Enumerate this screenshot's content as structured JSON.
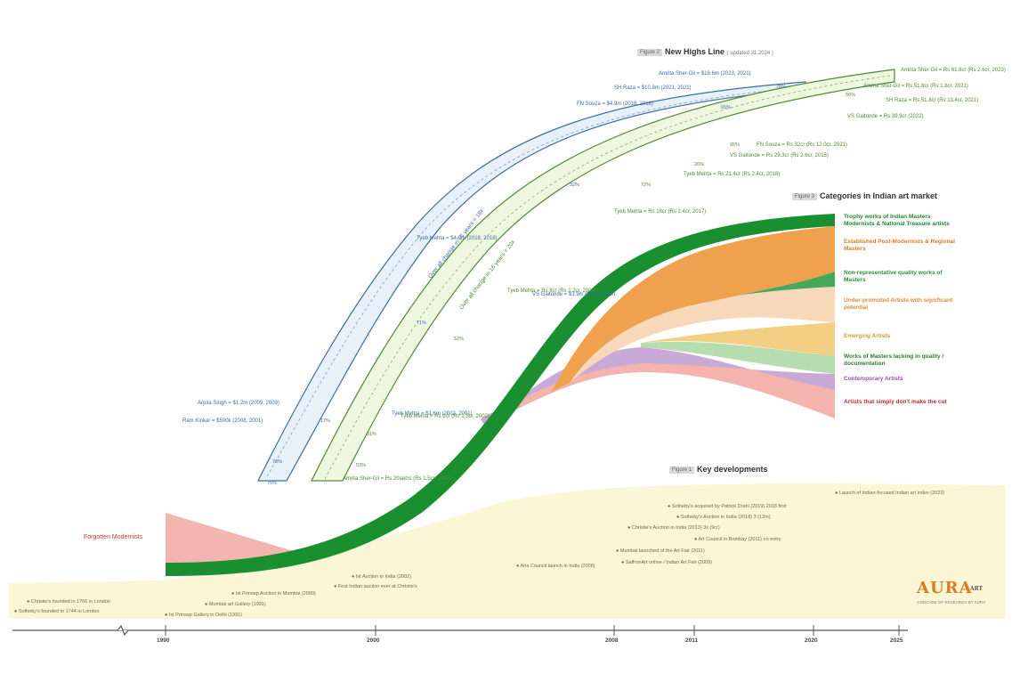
{
  "figure2": {
    "fig": "Figure 2",
    "title": "New Highs Line",
    "sub": "( updated 31.2024 )"
  },
  "figure3": {
    "fig": "Figure 3",
    "title": "Categories in Indian art market"
  },
  "figure1": {
    "fig": "Figure 1",
    "title": "Key developments"
  },
  "left_label": "Forgotten Modernists",
  "overall_blue": "Over all change in 16 years = 18x",
  "overall_green": "Over all change in 16 years = 20x",
  "categories": [
    {
      "label": "Trophy works of Indian Masters Modernists & National Treasure artists",
      "color": "#1e8a2e"
    },
    {
      "label": "Established Post-Modernists & Regional Masters",
      "color": "#e07b1b"
    },
    {
      "label": "Non-representative quality works of Masters",
      "color": "#2f8f3a"
    },
    {
      "label": "Under-promoted Artists with significant potential",
      "color": "#e08a3a"
    },
    {
      "label": "Emerging Artists",
      "color": "#c8a02a"
    },
    {
      "label": "Works of Masters lacking in quality / documentation",
      "color": "#2e7d32"
    },
    {
      "label": "Contemporary Artists",
      "color": "#9c4fa8"
    },
    {
      "label": "Artists that simply don't make the cut",
      "color": "#c62828"
    }
  ],
  "blue_labels": [
    "Amrita Sher-Gil = $18.6m (2023, 2021)",
    "SH Raza = $10.8m (2021, 2021)",
    "FN Souza = $4.9m (2018, 2018)",
    "Tyeb Mehta = $4.0m (2018, 2018)",
    "VS Gaitonde = $3.9m (2013, 2015)",
    "Tyeb Mehta = $1.6m (2002, 2001)",
    "Arpita Singh = $1.2m (2009, 2009)",
    "Ram Kinkar = $500k (2008, 2001)"
  ],
  "green_labels": [
    "Amrita Sher-Gil = Rs 61.8cr (Rs 2.6cr, 2023)",
    "Amrita Sher-Gil = Rs 51.8cr (Rs 1.8cr, 2021)",
    "SH Raza = Rs 51.8cr (Rs 13.4cr, 2021)",
    "VS Gaitonde = Rs 39.9cr (2022)",
    "FN Souza = Rs 32cr (Rs 12.0cr, 2021)",
    "VS Gaitonde = Rs 29.3cr (Rs 2.6cr, 2015)",
    "Tyeb Mehta = Rs 21.4cr (Rs 2.4cr, 2018)",
    "Tyeb Mehta = Rs 18cr (Rs 2.4cr, 2017)",
    "Tyeb Mehta = Rs 8cr (Rs 1.2cr, 2009)",
    "Tyeb Mehta = Rs 1cr (Rs 1.5cr, 2002)",
    "Amrita Sher-Gil = Rs 20lakhs (Rs 1.5cr, 2000)"
  ],
  "pcts_blue": [
    "78%",
    "65%",
    "32%",
    "71%",
    "17%",
    "73%",
    "75%"
  ],
  "pcts_green": [
    "56%",
    "95%",
    "26%",
    "72%",
    "52%",
    "81%",
    "53%"
  ],
  "developments": [
    "Launch of Indian-focused Indian art index (2023)",
    "Sotheby's acquired by Patrick Drahi (2019) 2018 first",
    "Sotheby's Auction in India (2018) 3 (12m)",
    "Christie's Auction in India (2013) 3x (9cr)",
    "Art Council in Bombay (2011) on entry",
    "Mumbai launched of the Art Fair (2011)",
    "SaffronArt online / Indian Art Fair (2009)",
    "Arts Council launch in India (2008)",
    "Ist Auction in India (2002)",
    "First Indian auction ever at Christie's",
    "Ist Prinsep Auction in Mumbai (2000)",
    "Christie's founded in 1766 in London",
    "Sotheby's founded in 1744 in London",
    "Mumbai art Gallery (1991)",
    "Ist Prinsep Gallery in Delhi (1991)"
  ],
  "axis": [
    "1990",
    "2000",
    "2008",
    "2011",
    "2020",
    "2025"
  ],
  "logo": {
    "text": "AURA",
    "sup": "ART",
    "tag": "A DECADE OF RESEARCH BY AURA"
  },
  "chart_data": {
    "type": "area",
    "x": [
      1990,
      2000,
      2008,
      2011,
      2020,
      2025
    ]
  }
}
